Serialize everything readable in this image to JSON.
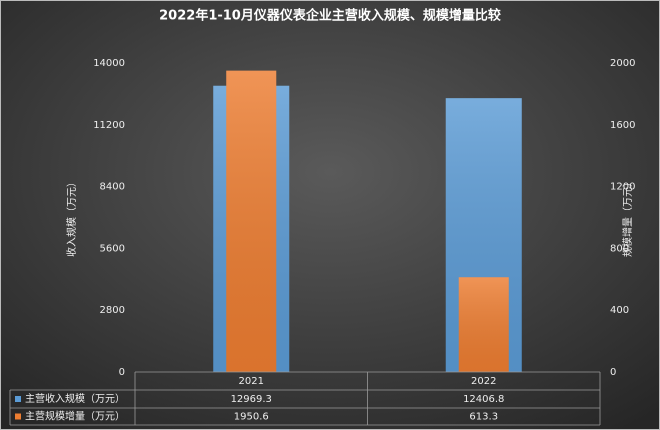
{
  "chart_data": {
    "type": "bar",
    "title": "2022年1-10月仪器仪表企业主营收入规模、规模增量比较",
    "categories": [
      "2021",
      "2022"
    ],
    "series": [
      {
        "name": "主营收入规模（万元）",
        "color": "#5b9bd5",
        "values": [
          12969.3,
          12406.8
        ]
      },
      {
        "name": "主营规模增量（万元）",
        "color": "#ed7d31",
        "values": [
          1950.6,
          613.3
        ],
        "axis": "y2"
      }
    ],
    "ylabel": "收入规模（万元）",
    "y2label": "规模增量（万元）",
    "ylim": [
      0,
      14000
    ],
    "yticks": [
      0,
      2800,
      5600,
      8400,
      11200,
      14000
    ],
    "y2lim": [
      0,
      2000
    ],
    "y2ticks": [
      0,
      400,
      800,
      1200,
      1600,
      2000
    ]
  }
}
